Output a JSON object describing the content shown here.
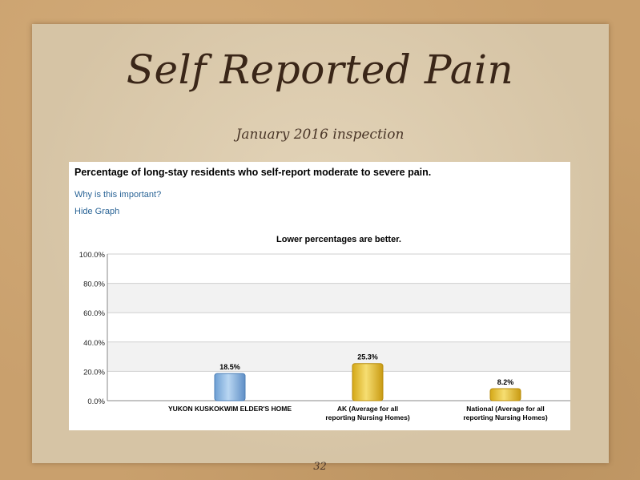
{
  "slide": {
    "title": "Self Reported Pain",
    "subtitle": "January 2016 inspection",
    "page_number": "32"
  },
  "panel": {
    "heading": "Percentage of long-stay residents who self-report moderate to severe pain.",
    "link_why": "Why is this important?",
    "link_hide": "Hide Graph"
  },
  "chart_data": {
    "type": "bar",
    "title": "Lower percentages are better.",
    "categories": [
      [
        "YUKON KUSKOKWIM ELDER'S HOME"
      ],
      [
        "AK (Average for all",
        "reporting Nursing Homes)"
      ],
      [
        "National (Average for all",
        "reporting Nursing Homes)"
      ]
    ],
    "values": [
      18.5,
      25.3,
      8.2
    ],
    "value_labels": [
      "18.5%",
      "25.3%",
      "8.2%"
    ],
    "yticks": [
      "0.0%",
      "20.0%",
      "40.0%",
      "60.0%",
      "80.0%",
      "100.0%"
    ],
    "ylim": [
      0,
      100
    ],
    "bar_colors": [
      "#8fbbe3",
      "#e8c53c",
      "#e8c53c"
    ],
    "grid": true
  }
}
